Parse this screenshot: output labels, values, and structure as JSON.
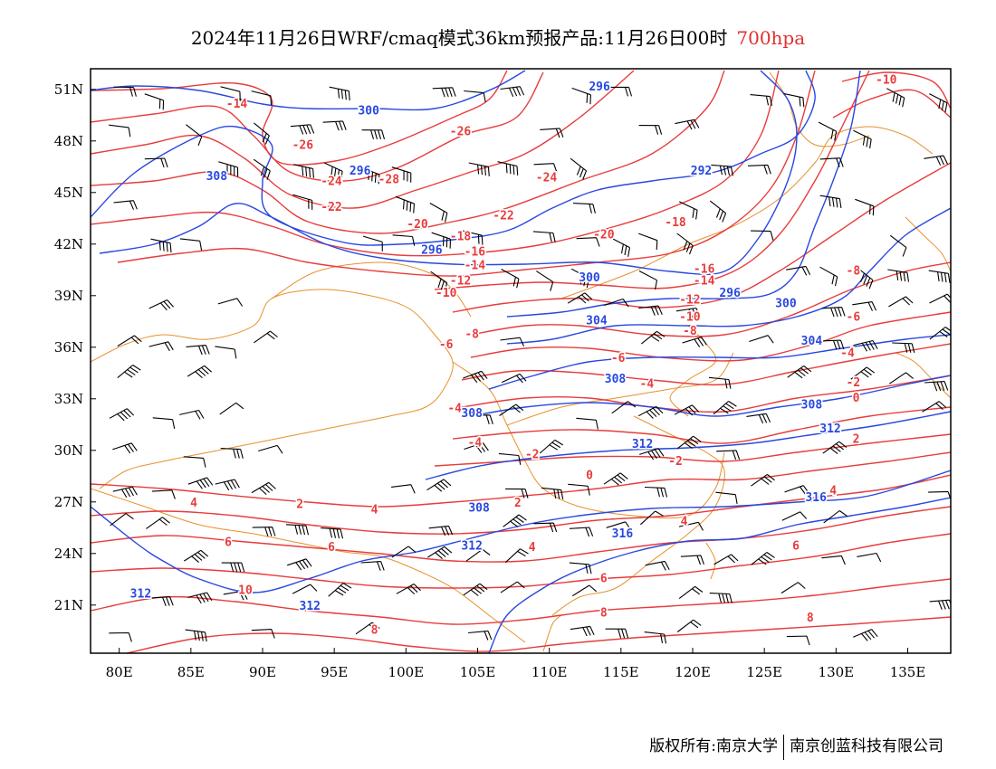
{
  "title": {
    "main": "2024年11月26日WRF/cmaq模式36km预报产品:11月26日00时",
    "level": "700hpa"
  },
  "colors": {
    "temperature": "#e83c3c",
    "height": "#2848e0",
    "boundary": "#e8902c",
    "wind": "#000000"
  },
  "axes": {
    "lon_range": [
      78,
      138
    ],
    "lat_range": [
      18.2,
      52.2
    ],
    "x_ticks": [
      {
        "value": 80,
        "label": "80E"
      },
      {
        "value": 85,
        "label": "85E"
      },
      {
        "value": 90,
        "label": "90E"
      },
      {
        "value": 95,
        "label": "95E"
      },
      {
        "value": 100,
        "label": "100E"
      },
      {
        "value": 105,
        "label": "105E"
      },
      {
        "value": 110,
        "label": "110E"
      },
      {
        "value": 115,
        "label": "115E"
      },
      {
        "value": 120,
        "label": "120E"
      },
      {
        "value": 125,
        "label": "125E"
      },
      {
        "value": 130,
        "label": "130E"
      },
      {
        "value": 135,
        "label": "135E"
      }
    ],
    "y_ticks": [
      {
        "value": 51,
        "label": "51N"
      },
      {
        "value": 48,
        "label": "48N"
      },
      {
        "value": 45,
        "label": "45N"
      },
      {
        "value": 42,
        "label": "42N"
      },
      {
        "value": 39,
        "label": "39N"
      },
      {
        "value": 36,
        "label": "36N"
      },
      {
        "value": 33,
        "label": "33N"
      },
      {
        "value": 30,
        "label": "30N"
      },
      {
        "value": 27,
        "label": "27N"
      },
      {
        "value": 24,
        "label": "24N"
      },
      {
        "value": 21,
        "label": "21N"
      }
    ]
  },
  "temperature_labels": [
    {
      "text": "-14",
      "lon": 88.2,
      "lat": 50.2
    },
    {
      "text": "-10",
      "lon": 133.5,
      "lat": 51.6
    },
    {
      "text": "-26",
      "lon": 92.8,
      "lat": 47.8
    },
    {
      "text": "-26",
      "lon": 103.8,
      "lat": 48.6
    },
    {
      "text": "-24",
      "lon": 94.8,
      "lat": 45.7
    },
    {
      "text": "-28",
      "lon": 98.8,
      "lat": 45.8
    },
    {
      "text": "-24",
      "lon": 109.8,
      "lat": 45.9
    },
    {
      "text": "-22",
      "lon": 94.8,
      "lat": 44.2
    },
    {
      "text": "-22",
      "lon": 106.8,
      "lat": 43.7
    },
    {
      "text": "-20",
      "lon": 100.8,
      "lat": 43.2
    },
    {
      "text": "-18",
      "lon": 103.8,
      "lat": 42.5
    },
    {
      "text": "-20",
      "lon": 113.8,
      "lat": 42.6
    },
    {
      "text": "-18",
      "lon": 118.8,
      "lat": 43.3
    },
    {
      "text": "-16",
      "lon": 104.8,
      "lat": 41.6
    },
    {
      "text": "-16",
      "lon": 120.8,
      "lat": 40.6
    },
    {
      "text": "-14",
      "lon": 104.8,
      "lat": 40.8
    },
    {
      "text": "-12",
      "lon": 103.8,
      "lat": 39.9
    },
    {
      "text": "-10",
      "lon": 102.8,
      "lat": 39.2
    },
    {
      "text": "-14",
      "lon": 120.8,
      "lat": 39.9
    },
    {
      "text": "-12",
      "lon": 119.8,
      "lat": 38.8
    },
    {
      "text": "-10",
      "lon": 119.8,
      "lat": 37.8
    },
    {
      "text": "-8",
      "lon": 119.8,
      "lat": 37.0
    },
    {
      "text": "-8",
      "lon": 131.2,
      "lat": 40.5
    },
    {
      "text": "-6",
      "lon": 131.2,
      "lat": 37.8
    },
    {
      "text": "-8",
      "lon": 104.6,
      "lat": 36.8
    },
    {
      "text": "-6",
      "lon": 102.8,
      "lat": 36.2
    },
    {
      "text": "-4",
      "lon": 130.8,
      "lat": 35.7
    },
    {
      "text": "-6",
      "lon": 114.8,
      "lat": 35.4
    },
    {
      "text": "-2",
      "lon": 131.2,
      "lat": 34.0
    },
    {
      "text": "-4",
      "lon": 116.8,
      "lat": 33.9
    },
    {
      "text": "0",
      "lon": 131.4,
      "lat": 33.1
    },
    {
      "text": "-4",
      "lon": 103.4,
      "lat": 32.5
    },
    {
      "text": "-4",
      "lon": 104.8,
      "lat": 30.5
    },
    {
      "text": "-2",
      "lon": 108.8,
      "lat": 29.8
    },
    {
      "text": "2",
      "lon": 131.4,
      "lat": 30.7
    },
    {
      "text": "-2",
      "lon": 118.8,
      "lat": 29.4
    },
    {
      "text": "0",
      "lon": 112.8,
      "lat": 28.6
    },
    {
      "text": "4",
      "lon": 129.8,
      "lat": 27.7
    },
    {
      "text": "2",
      "lon": 92.6,
      "lat": 26.9
    },
    {
      "text": "2",
      "lon": 107.8,
      "lat": 27.0
    },
    {
      "text": "4",
      "lon": 85.2,
      "lat": 27.0
    },
    {
      "text": "4",
      "lon": 97.8,
      "lat": 26.6
    },
    {
      "text": "4",
      "lon": 119.4,
      "lat": 25.9
    },
    {
      "text": "6",
      "lon": 87.6,
      "lat": 24.7
    },
    {
      "text": "6",
      "lon": 94.8,
      "lat": 24.4
    },
    {
      "text": "4",
      "lon": 108.8,
      "lat": 24.4
    },
    {
      "text": "6",
      "lon": 127.2,
      "lat": 24.5
    },
    {
      "text": "6",
      "lon": 113.8,
      "lat": 22.6
    },
    {
      "text": "10",
      "lon": 88.8,
      "lat": 21.9
    },
    {
      "text": "8",
      "lon": 113.8,
      "lat": 20.6
    },
    {
      "text": "8",
      "lon": 128.2,
      "lat": 20.3
    },
    {
      "text": "8",
      "lon": 97.8,
      "lat": 19.6
    }
  ],
  "height_labels": [
    {
      "text": "296",
      "lon": 113.5,
      "lat": 51.2
    },
    {
      "text": "300",
      "lon": 97.4,
      "lat": 49.8
    },
    {
      "text": "308",
      "lon": 86.8,
      "lat": 46.0
    },
    {
      "text": "296",
      "lon": 96.8,
      "lat": 46.3
    },
    {
      "text": "292",
      "lon": 120.6,
      "lat": 46.3
    },
    {
      "text": "296",
      "lon": 101.8,
      "lat": 41.7
    },
    {
      "text": "300",
      "lon": 112.8,
      "lat": 40.1
    },
    {
      "text": "296",
      "lon": 122.6,
      "lat": 39.2
    },
    {
      "text": "300",
      "lon": 126.5,
      "lat": 38.6
    },
    {
      "text": "304",
      "lon": 113.3,
      "lat": 37.6
    },
    {
      "text": "304",
      "lon": 128.3,
      "lat": 36.4
    },
    {
      "text": "308",
      "lon": 114.6,
      "lat": 34.2
    },
    {
      "text": "308",
      "lon": 128.3,
      "lat": 32.7
    },
    {
      "text": "308",
      "lon": 104.6,
      "lat": 32.2
    },
    {
      "text": "312",
      "lon": 129.6,
      "lat": 31.3
    },
    {
      "text": "312",
      "lon": 116.5,
      "lat": 30.4
    },
    {
      "text": "316",
      "lon": 128.6,
      "lat": 27.3
    },
    {
      "text": "308",
      "lon": 105.1,
      "lat": 26.7
    },
    {
      "text": "316",
      "lon": 115.1,
      "lat": 25.2
    },
    {
      "text": "312",
      "lon": 104.6,
      "lat": 24.5
    },
    {
      "text": "312",
      "lon": 81.5,
      "lat": 21.7
    },
    {
      "text": "312",
      "lon": 93.3,
      "lat": 21.0
    }
  ],
  "footer": {
    "left": "版权所有:南京大学",
    "right": "南京创蓝科技有限公司"
  }
}
